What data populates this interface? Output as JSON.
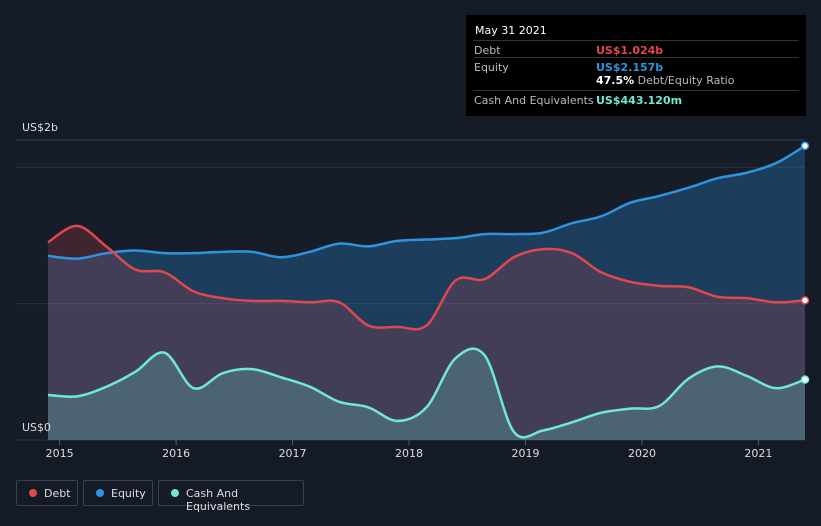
{
  "tooltip": {
    "date": "May 31 2021",
    "debt_label": "Debt",
    "debt_value": "US$1.024b",
    "equity_label": "Equity",
    "equity_value": "US$2.157b",
    "ratio_value": "47.5%",
    "ratio_label": "Debt/Equity Ratio",
    "cash_label": "Cash And Equivalents",
    "cash_value": "US$443.120m"
  },
  "legend": {
    "debt": "Debt",
    "equity": "Equity",
    "cash": "Cash And Equivalents"
  },
  "colors": {
    "debt": "#e0474f",
    "equity": "#2e94e0",
    "cash": "#6fe8d4",
    "background": "#151b26"
  },
  "chart_data": {
    "type": "area",
    "y_axis_labels": [
      "US$2b",
      "US$0"
    ],
    "ylim": [
      0,
      2.2
    ],
    "x_ticks": [
      "2015",
      "2016",
      "2017",
      "2018",
      "2019",
      "2020",
      "2021"
    ],
    "x_tick_values": [
      2015,
      2016,
      2017,
      2018,
      2019,
      2020,
      2021
    ],
    "xlim": [
      2014.9,
      2021.4
    ],
    "grid": true,
    "legend_position": "bottom-left",
    "series": [
      {
        "name": "Debt",
        "x": [
          2014.9,
          2015.15,
          2015.4,
          2015.65,
          2015.9,
          2016.15,
          2016.4,
          2016.65,
          2016.9,
          2017.15,
          2017.4,
          2017.65,
          2017.9,
          2018.15,
          2018.4,
          2018.65,
          2018.9,
          2019.15,
          2019.4,
          2019.65,
          2019.9,
          2020.15,
          2020.4,
          2020.65,
          2020.9,
          2021.15,
          2021.4
        ],
        "values": [
          1.45,
          1.57,
          1.42,
          1.25,
          1.23,
          1.09,
          1.04,
          1.02,
          1.02,
          1.01,
          1.01,
          0.84,
          0.83,
          0.84,
          1.17,
          1.18,
          1.34,
          1.4,
          1.37,
          1.23,
          1.16,
          1.13,
          1.12,
          1.05,
          1.04,
          1.01,
          1.024
        ]
      },
      {
        "name": "Equity",
        "x": [
          2014.9,
          2015.15,
          2015.4,
          2015.65,
          2015.9,
          2016.15,
          2016.4,
          2016.65,
          2016.9,
          2017.15,
          2017.4,
          2017.65,
          2017.9,
          2018.15,
          2018.4,
          2018.65,
          2018.9,
          2019.15,
          2019.4,
          2019.65,
          2019.9,
          2020.15,
          2020.4,
          2020.65,
          2020.9,
          2021.15,
          2021.4
        ],
        "values": [
          1.35,
          1.33,
          1.37,
          1.39,
          1.37,
          1.37,
          1.38,
          1.38,
          1.34,
          1.38,
          1.44,
          1.42,
          1.46,
          1.47,
          1.48,
          1.51,
          1.51,
          1.52,
          1.59,
          1.64,
          1.74,
          1.79,
          1.85,
          1.92,
          1.96,
          2.03,
          2.157
        ]
      },
      {
        "name": "Cash And Equivalents",
        "x": [
          2014.9,
          2015.15,
          2015.4,
          2015.65,
          2015.9,
          2016.15,
          2016.4,
          2016.65,
          2016.9,
          2017.15,
          2017.4,
          2017.65,
          2017.9,
          2018.15,
          2018.4,
          2018.65,
          2018.9,
          2019.15,
          2019.4,
          2019.65,
          2019.9,
          2020.15,
          2020.4,
          2020.65,
          2020.9,
          2021.15,
          2021.4
        ],
        "values": [
          0.33,
          0.32,
          0.39,
          0.5,
          0.64,
          0.38,
          0.49,
          0.52,
          0.46,
          0.39,
          0.28,
          0.24,
          0.14,
          0.24,
          0.6,
          0.62,
          0.06,
          0.07,
          0.13,
          0.2,
          0.23,
          0.25,
          0.45,
          0.54,
          0.47,
          0.38,
          0.443
        ]
      }
    ]
  }
}
